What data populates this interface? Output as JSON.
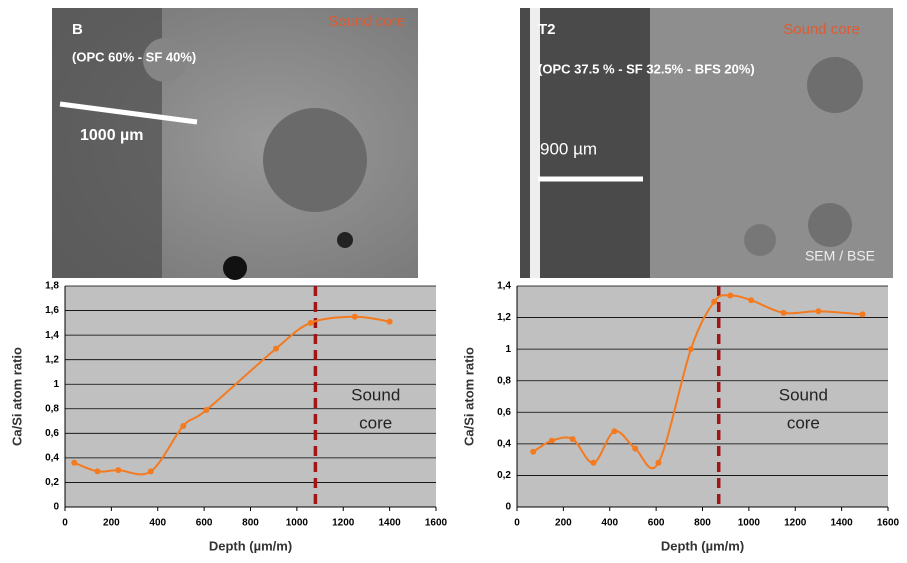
{
  "images": [
    {
      "label": "B",
      "composition": "(OPC 60% - SF 40%)",
      "region": "Sound core",
      "scale": "1000 µm"
    },
    {
      "label": "T2",
      "composition": "(OPC 37.5 % - SF 32.5% - BFS 20%)",
      "region": "Sound core",
      "scale": "900 µm",
      "technique": "SEM / BSE"
    }
  ],
  "chart_data": [
    {
      "type": "line",
      "x_label": "Depth (µm/m)",
      "y_label": "Ca/Si atom ratio",
      "x": [
        40,
        140,
        230,
        370,
        510,
        610,
        910,
        1060,
        1250,
        1400
      ],
      "series": [
        {
          "color": "#f47a20",
          "values": [
            0.36,
            0.29,
            0.3,
            0.29,
            0.66,
            0.79,
            1.29,
            1.5,
            1.55,
            1.51
          ]
        }
      ],
      "xlim": [
        0,
        1600
      ],
      "xticks": [
        0,
        200,
        400,
        600,
        800,
        1000,
        1200,
        1400,
        1600
      ],
      "ylim": [
        0,
        1.8
      ],
      "yticks": [
        0,
        {
          "value": 0.2,
          "label": "0,2"
        },
        {
          "value": 0.4,
          "label": "0,4"
        },
        {
          "value": 0.6,
          "label": "0,6"
        },
        {
          "value": 0.8,
          "label": "0,8"
        },
        1,
        {
          "value": 1.2,
          "label": "1,2"
        },
        {
          "value": 1.4,
          "label": "1,4"
        },
        {
          "value": 1.6,
          "label": "1,6"
        },
        {
          "value": 1.8,
          "label": "1,8"
        }
      ],
      "grid": true,
      "vline": 1080,
      "annotation": [
        "Sound",
        "core"
      ]
    },
    {
      "type": "line",
      "x_label": "Depth (µm/m)",
      "y_label": "Ca/Si atom ratio",
      "x": [
        70,
        150,
        240,
        330,
        420,
        510,
        610,
        750,
        850,
        920,
        1010,
        1150,
        1300,
        1490
      ],
      "series": [
        {
          "color": "#f47a20",
          "values": [
            0.35,
            0.42,
            0.43,
            0.28,
            0.48,
            0.37,
            0.28,
            1.0,
            1.3,
            1.34,
            1.31,
            1.23,
            1.24,
            1.22
          ]
        }
      ],
      "xlim": [
        0,
        1600
      ],
      "xticks": [
        0,
        200,
        400,
        600,
        800,
        1000,
        1200,
        1400,
        1600
      ],
      "ylim": [
        0,
        1.4
      ],
      "yticks": [
        0,
        {
          "value": 0.2,
          "label": "0,2"
        },
        {
          "value": 0.4,
          "label": "0,4"
        },
        {
          "value": 0.6,
          "label": "0,6"
        },
        {
          "value": 0.8,
          "label": "0,8"
        },
        1,
        {
          "value": 1.2,
          "label": "1,2"
        },
        {
          "value": 1.4,
          "label": "1,4"
        }
      ],
      "grid": true,
      "vline": 870,
      "annotation": [
        "Sound",
        "core"
      ]
    }
  ]
}
